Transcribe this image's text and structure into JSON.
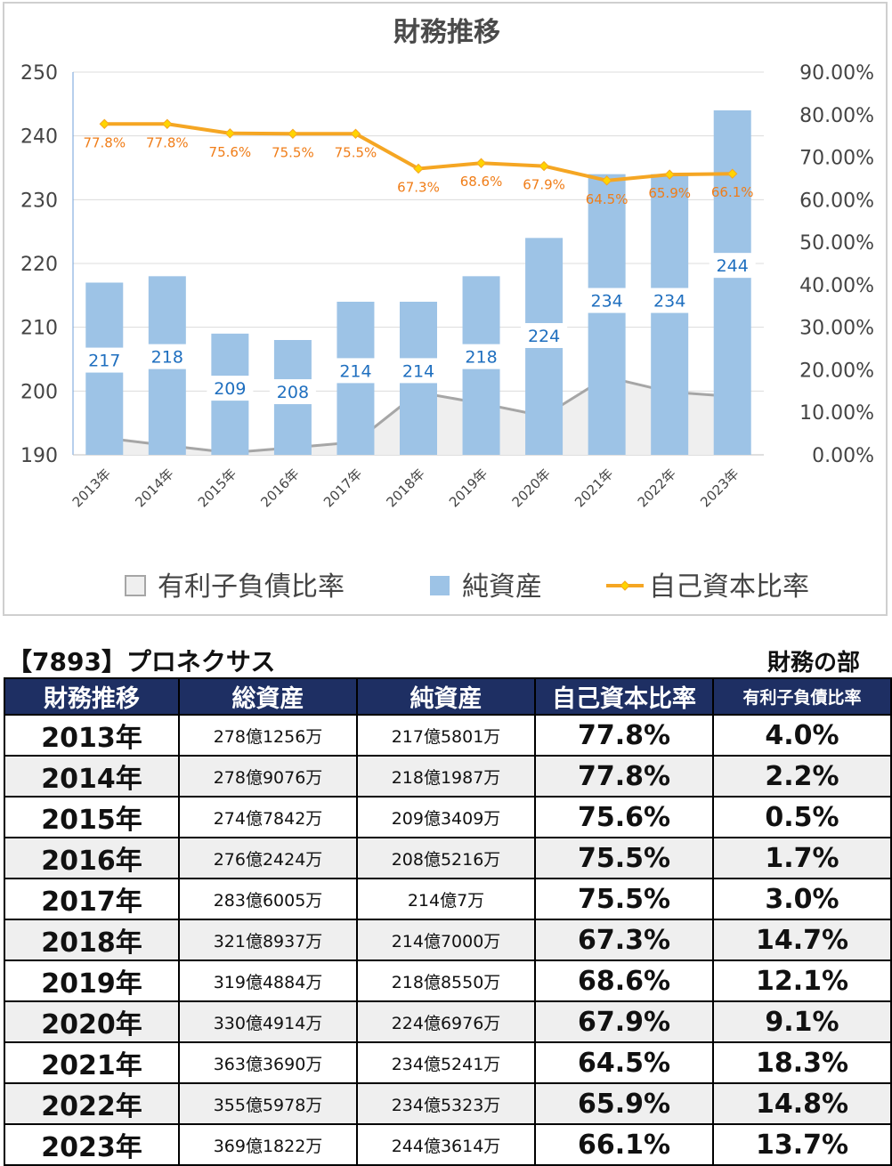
{
  "chart_data": {
    "type": "bar",
    "title": "財務推移",
    "categories": [
      "2013年",
      "2014年",
      "2015年",
      "2016年",
      "2017年",
      "2018年",
      "2019年",
      "2020年",
      "2021年",
      "2022年",
      "2023年"
    ],
    "y_left": {
      "ylim": [
        190,
        250
      ],
      "ticks": [
        "250",
        "240",
        "230",
        "220",
        "210",
        "200",
        "190"
      ]
    },
    "y_right": {
      "ylim": [
        0,
        90
      ],
      "ticks": [
        "90.00%",
        "80.00%",
        "70.00%",
        "60.00%",
        "50.00%",
        "40.00%",
        "30.00%",
        "20.00%",
        "10.00%",
        "0.00%"
      ]
    },
    "series": [
      {
        "name": "有利子負債比率",
        "type": "area",
        "axis": "right",
        "color": "#a6a6a6",
        "values": [
          4.0,
          2.2,
          0.5,
          1.7,
          3.0,
          14.7,
          12.1,
          9.1,
          18.3,
          14.8,
          13.7
        ]
      },
      {
        "name": "純資産",
        "type": "bar",
        "axis": "left",
        "color": "#9dc3e6",
        "values": [
          217,
          218,
          209,
          208,
          214,
          214,
          218,
          224,
          234,
          234,
          244
        ],
        "labels": [
          "217",
          "218",
          "209",
          "208",
          "214",
          "214",
          "218",
          "224",
          "234",
          "234",
          "244"
        ]
      },
      {
        "name": "自己資本比率",
        "type": "line",
        "axis": "right",
        "color": "#f5a623",
        "values": [
          77.8,
          77.8,
          75.6,
          75.5,
          75.5,
          67.3,
          68.6,
          67.9,
          64.5,
          65.9,
          66.1
        ],
        "labels": [
          "77.8%",
          "77.8%",
          "75.6%",
          "75.5%",
          "75.5%",
          "67.3%",
          "68.6%",
          "67.9%",
          "64.5%",
          "65.9%",
          "66.1%"
        ]
      }
    ],
    "legend": "bottom"
  },
  "header": {
    "stock": "【7893】プロネクサス",
    "section": "財務の部"
  },
  "table": {
    "columns": [
      "財務推移",
      "総資産",
      "純資産",
      "自己資本比率",
      "有利子負債比率"
    ],
    "rows": [
      [
        "2013年",
        "278億1256万",
        "217億5801万",
        "77.8%",
        "4.0%"
      ],
      [
        "2014年",
        "278億9076万",
        "218億1987万",
        "77.8%",
        "2.2%"
      ],
      [
        "2015年",
        "274億7842万",
        "209億3409万",
        "75.6%",
        "0.5%"
      ],
      [
        "2016年",
        "276億2424万",
        "208億5216万",
        "75.5%",
        "1.7%"
      ],
      [
        "2017年",
        "283億6005万",
        "214億7万",
        "75.5%",
        "3.0%"
      ],
      [
        "2018年",
        "321億8937万",
        "214億7000万",
        "67.3%",
        "14.7%"
      ],
      [
        "2019年",
        "319億4884万",
        "218億8550万",
        "68.6%",
        "12.1%"
      ],
      [
        "2020年",
        "330億4914万",
        "224億6976万",
        "67.9%",
        "9.1%"
      ],
      [
        "2021年",
        "363億3690万",
        "234億5241万",
        "64.5%",
        "18.3%"
      ],
      [
        "2022年",
        "355億5978万",
        "234億5323万",
        "65.9%",
        "14.8%"
      ],
      [
        "2023年",
        "369億1822万",
        "244億3614万",
        "66.1%",
        "13.7%"
      ]
    ]
  }
}
